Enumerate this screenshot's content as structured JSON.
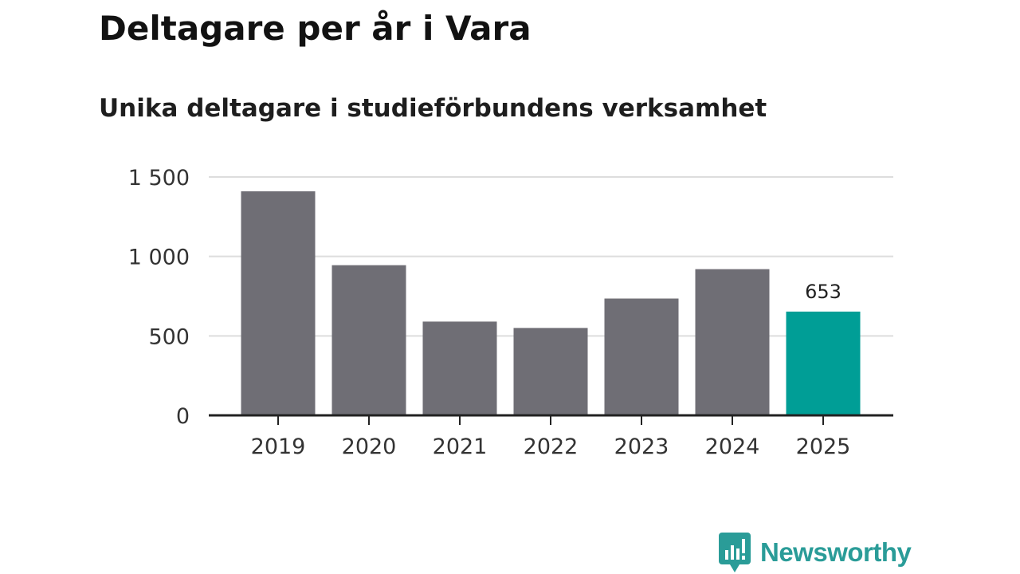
{
  "title": "Deltagare per år i Vara",
  "subtitle": "Unika deltagare i studieförbundens verksamhet",
  "brand": {
    "name": "Newsworthy",
    "icon": "newsworthy-logo-icon",
    "color": "#2a9c98"
  },
  "colors": {
    "bar": "#6f6e75",
    "highlight": "#009e96",
    "grid": "#dddddd",
    "axis": "#222222",
    "tick_text": "#333333",
    "label_text": "#222222"
  },
  "chart_data": {
    "type": "bar",
    "title": "Deltagare per år i Vara",
    "subtitle": "Unika deltagare i studieförbundens verksamhet",
    "xlabel": "",
    "ylabel": "",
    "categories": [
      "2019",
      "2020",
      "2021",
      "2022",
      "2023",
      "2024",
      "2025"
    ],
    "values": [
      1410,
      945,
      590,
      550,
      735,
      920,
      653
    ],
    "highlight_index": 6,
    "data_labels": [
      {
        "index": 6,
        "text": "653"
      }
    ],
    "ylim": [
      0,
      1500
    ],
    "yticks": [
      0,
      500,
      1000,
      1500
    ],
    "ytick_labels": [
      "0",
      "500",
      "1 000",
      "1 500"
    ],
    "grid": true,
    "legend": "none"
  }
}
